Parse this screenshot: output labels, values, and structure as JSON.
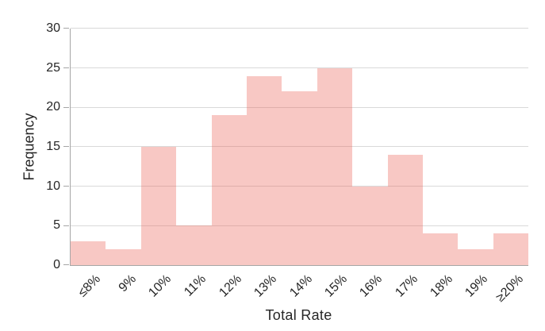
{
  "chart_data": {
    "type": "bar",
    "subtype": "histogram",
    "xlabel": "Total Rate",
    "ylabel": "Frequency",
    "categories": [
      "≤8%",
      "9%",
      "10%",
      "11%",
      "12%",
      "13%",
      "14%",
      "15%",
      "16%",
      "17%",
      "18%",
      "19%",
      "≥20%"
    ],
    "values": [
      3,
      2,
      15,
      5,
      19,
      24,
      22,
      25,
      10,
      14,
      4,
      2,
      4
    ],
    "ylim": [
      0,
      30
    ],
    "yticks": [
      0,
      5,
      10,
      15,
      20,
      25,
      30
    ],
    "grid": "horizontal",
    "legend_position": "none",
    "bar_gap": 0,
    "x_tick_rotation_deg": 45,
    "colors": {
      "bar_fill": "rgba(234,96,87,0.35)",
      "bar_fill_rendered": "#F8C7C4",
      "gridline": "#D9D9D9",
      "axis_line": "#A6A6A6",
      "text": "#262626",
      "background": "#FFFFFF"
    }
  }
}
